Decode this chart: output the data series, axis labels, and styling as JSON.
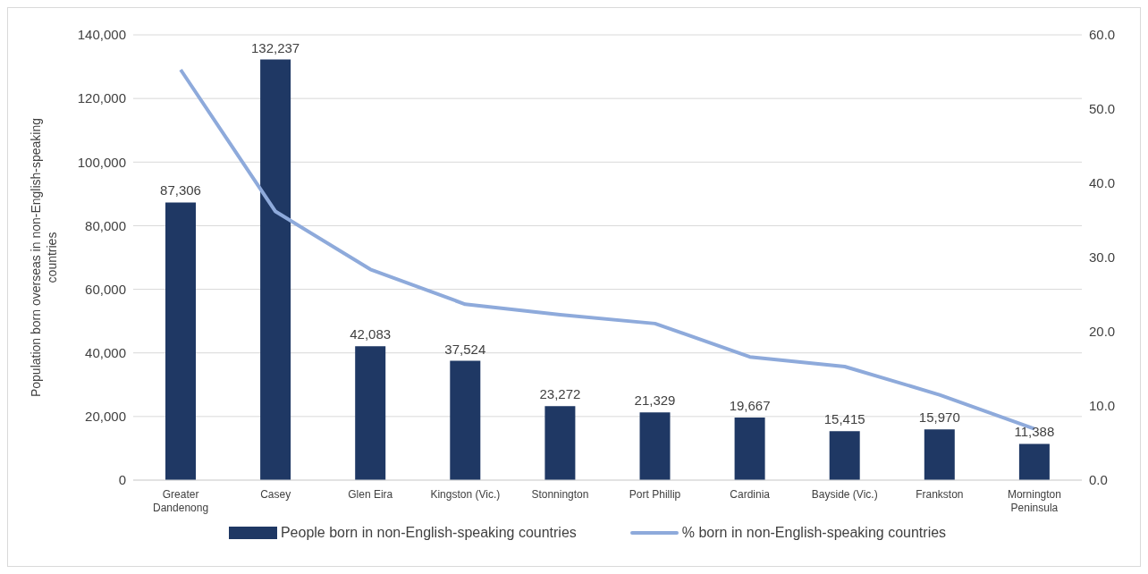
{
  "chart_data": {
    "type": "bar",
    "ylabel": "Population born overseas in non-English-speaking countries",
    "categories": [
      "Greater Dandenong",
      "Casey",
      "Glen Eira",
      "Kingston (Vic.)",
      "Stonnington",
      "Port Phillip",
      "Cardinia",
      "Bayside (Vic.)",
      "Frankston",
      "Mornington Peninsula"
    ],
    "series": [
      {
        "name": "People born in non-English-speaking countries",
        "color": "#1f3864",
        "values": [
          87306,
          132237,
          42083,
          37524,
          23272,
          21329,
          19667,
          15415,
          15970,
          11388
        ],
        "value_labels": [
          "87,306",
          "132,237",
          "42,083",
          "37,524",
          "23,272",
          "21,329",
          "19,667",
          "15,415",
          "15,970",
          "11,388"
        ]
      },
      {
        "name": "% born in non-English-speaking countries",
        "type": "line",
        "axis": "y2",
        "color": "#8eaadb",
        "values": [
          55.3,
          36.2,
          28.4,
          23.7,
          22.3,
          21.1,
          16.6,
          15.3,
          11.5,
          6.9
        ]
      }
    ],
    "ylim": [
      0,
      140000
    ],
    "yticks": [
      {
        "value": 0,
        "label": "0"
      },
      {
        "value": 20000,
        "label": "20,000"
      },
      {
        "value": 40000,
        "label": "40,000"
      },
      {
        "value": 60000,
        "label": "60,000"
      },
      {
        "value": 80000,
        "label": "80,000"
      },
      {
        "value": 100000,
        "label": "100,000"
      },
      {
        "value": 120000,
        "label": "120,000"
      },
      {
        "value": 140000,
        "label": "140,000"
      }
    ],
    "y2lim": [
      0,
      60
    ],
    "y2ticks": [
      {
        "value": 0,
        "label": "0.0"
      },
      {
        "value": 10,
        "label": "10.0"
      },
      {
        "value": 20,
        "label": "20.0"
      },
      {
        "value": 30,
        "label": "30.0"
      },
      {
        "value": 40,
        "label": "40.0"
      },
      {
        "value": 50,
        "label": "50.0"
      },
      {
        "value": 60,
        "label": "60.0"
      }
    ],
    "grid": "y",
    "legend": "bottom",
    "marker": "none",
    "line_style": "solid"
  }
}
